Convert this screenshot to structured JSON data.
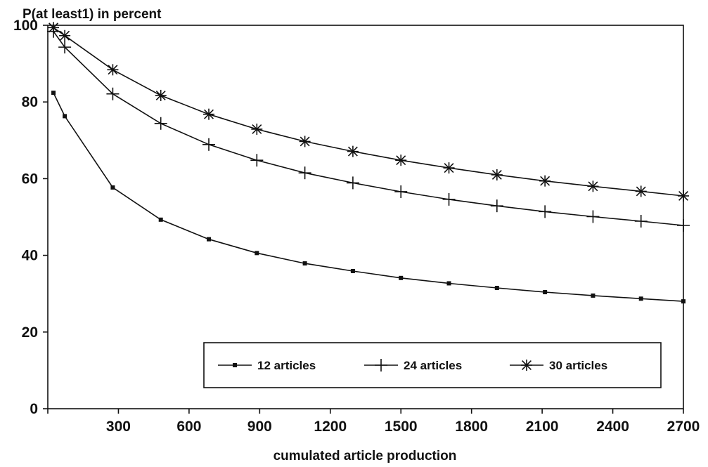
{
  "chart_data": {
    "type": "line",
    "title": "",
    "ylabel": "P(at least1) in percent",
    "xlabel": "cumulated article production",
    "xlim": [
      0,
      2700
    ],
    "ylim": [
      0,
      100
    ],
    "x_ticks": [
      "300",
      "600",
      "900",
      "1200",
      "1500",
      "1800",
      "2100",
      "2400",
      "2700"
    ],
    "y_ticks": [
      "0",
      "20",
      "40",
      "60",
      "80",
      "100"
    ],
    "legend_position": "bottom-right",
    "series": [
      {
        "name": "12 articles",
        "marker": "square",
        "x": [
          24,
          72,
          276,
          480,
          684,
          888,
          1092,
          1296,
          1500,
          1704,
          1908,
          2112,
          2316,
          2520,
          2700
        ],
        "y": [
          82.4,
          76.3,
          57.7,
          49.3,
          44.2,
          40.6,
          37.9,
          35.9,
          34.1,
          32.7,
          31.5,
          30.4,
          29.5,
          28.7,
          28.0
        ]
      },
      {
        "name": "24 articles",
        "marker": "plus",
        "x": [
          24,
          72,
          276,
          480,
          684,
          888,
          1092,
          1296,
          1500,
          1704,
          1908,
          2112,
          2316,
          2520,
          2700
        ],
        "y": [
          98.4,
          94.3,
          82.1,
          74.4,
          68.9,
          64.8,
          61.5,
          58.9,
          56.6,
          54.6,
          52.9,
          51.4,
          50.1,
          48.9,
          47.8
        ]
      },
      {
        "name": "30 articles",
        "marker": "asterisk",
        "x": [
          24,
          72,
          276,
          480,
          684,
          888,
          1092,
          1296,
          1500,
          1704,
          1908,
          2112,
          2316,
          2520,
          2700
        ],
        "y": [
          99.4,
          97.3,
          88.4,
          81.7,
          76.8,
          72.9,
          69.7,
          67.1,
          64.8,
          62.8,
          61.0,
          59.4,
          58.0,
          56.7,
          55.5
        ]
      }
    ],
    "colors": {
      "line": "#111111",
      "background": "#ffffff"
    }
  }
}
